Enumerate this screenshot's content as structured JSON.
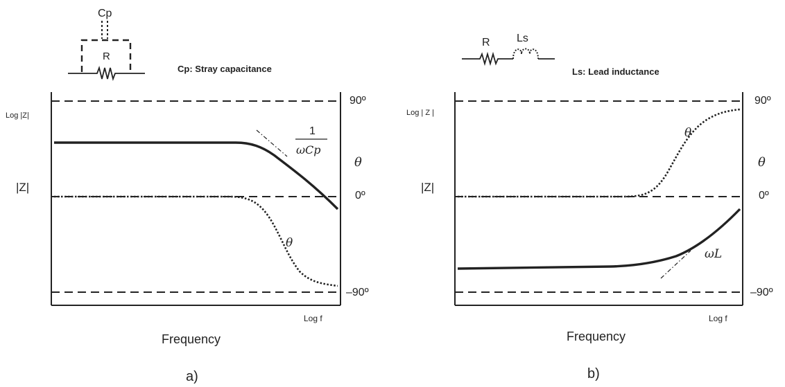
{
  "panel_a": {
    "circuit": {
      "cap_label": "Cp",
      "res_label": "R",
      "note": "Cp: Stray capacitance"
    },
    "y_axis_label": "Log |Z|",
    "z_label": "|Z|",
    "x_axis_label": "Log f",
    "frequency_label": "Frequency",
    "top_ref": "90º",
    "mid_ref": "0º",
    "bottom_ref": "–90º",
    "theta_right": "θ",
    "theta_curve": "θ",
    "asymptote_num": "1",
    "asymptote_den": "ωCp",
    "caption": "a)"
  },
  "panel_b": {
    "circuit": {
      "res_label": "R",
      "ind_label": "Ls",
      "note": "Ls: Lead inductance"
    },
    "y_axis_label": "Log | Z |",
    "z_label": "|Z|",
    "x_axis_label": "Log f",
    "frequency_label": "Frequency",
    "top_ref": "90º",
    "mid_ref": "0º",
    "bottom_ref": "–90º",
    "theta_right": "θ",
    "theta_curve": "θ",
    "asymptote_label": "ωL",
    "caption": "b)"
  },
  "colors": {
    "ink": "#222222",
    "background": "#ffffff"
  }
}
